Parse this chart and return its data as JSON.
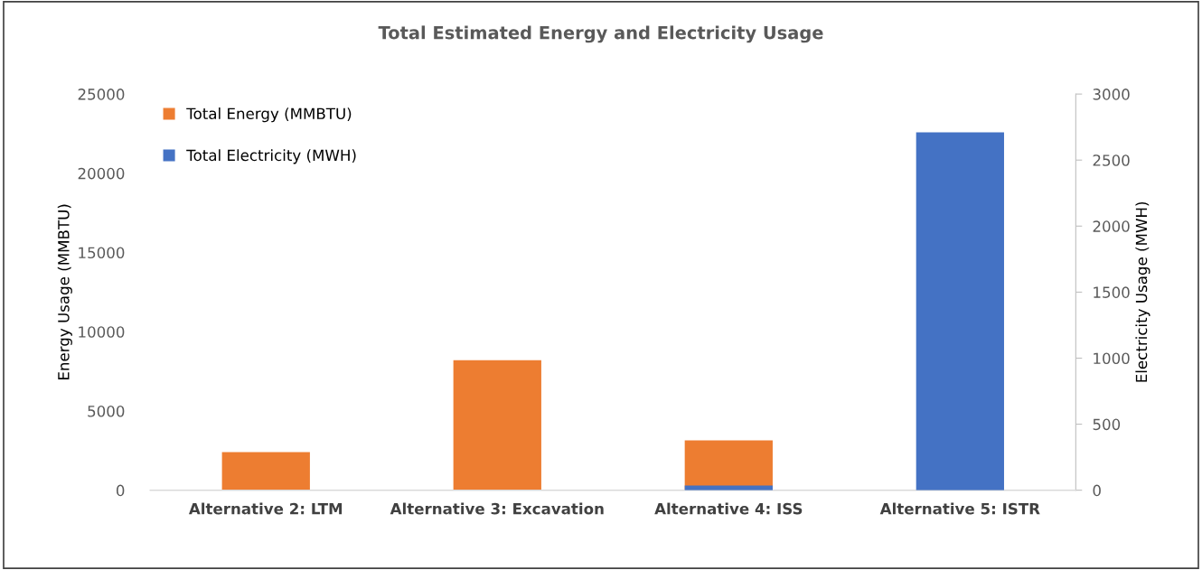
{
  "chart_data": {
    "type": "bar",
    "title": "Total Estimated Energy and Electricity Usage",
    "categories": [
      "Alternative 2: LTM",
      "Alternative 3: Excavation",
      "Alternative 4: ISS",
      "Alternative 5: ISTR"
    ],
    "series": [
      {
        "name": "Total Energy (MMBTU)",
        "color": "#ed7d31",
        "values": [
          2400,
          8200,
          3150,
          null
        ]
      },
      {
        "name": "Total Electricity (MWH)",
        "color": "#4472c4",
        "values": [
          null,
          null,
          35,
          2710
        ],
        "axis": "y2"
      }
    ],
    "ylabel": "Energy Usage (MMBTU)",
    "y2label": "Electricity Usage (MWH)",
    "ylim": [
      0,
      25000
    ],
    "yticks": [
      0,
      5000,
      10000,
      15000,
      20000,
      25000
    ],
    "y2lim": [
      0,
      3000
    ],
    "y2ticks": [
      0,
      500,
      1000,
      1500,
      2000,
      2500,
      3000
    ],
    "grid": false,
    "legend": "top left"
  }
}
